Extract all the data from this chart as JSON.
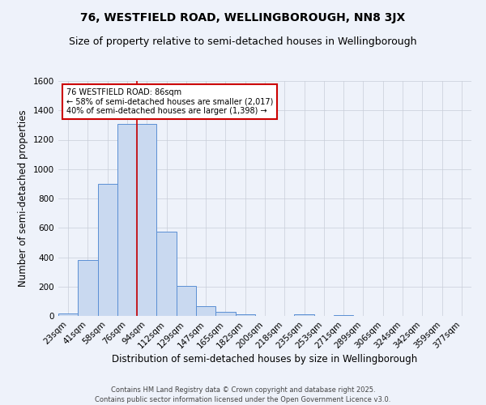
{
  "title": "76, WESTFIELD ROAD, WELLINGBOROUGH, NN8 3JX",
  "subtitle": "Size of property relative to semi-detached houses in Wellingborough",
  "xlabel": "Distribution of semi-detached houses by size in Wellingborough",
  "ylabel": "Number of semi-detached properties",
  "categories": [
    "23sqm",
    "41sqm",
    "58sqm",
    "76sqm",
    "94sqm",
    "112sqm",
    "129sqm",
    "147sqm",
    "165sqm",
    "182sqm",
    "200sqm",
    "218sqm",
    "235sqm",
    "253sqm",
    "271sqm",
    "289sqm",
    "306sqm",
    "324sqm",
    "342sqm",
    "359sqm",
    "377sqm"
  ],
  "values": [
    18,
    380,
    900,
    1310,
    1310,
    575,
    205,
    65,
    28,
    12,
    0,
    0,
    12,
    0,
    8,
    0,
    0,
    0,
    0,
    0,
    0
  ],
  "bar_color": "#c9d9f0",
  "bar_edge_color": "#5b8fd4",
  "highlight_bar_index": 3,
  "highlight_line_color": "#cc0000",
  "annotation_title": "76 WESTFIELD ROAD: 86sqm",
  "annotation_line1": "← 58% of semi-detached houses are smaller (2,017)",
  "annotation_line2": "40% of semi-detached houses are larger (1,398) →",
  "annotation_box_color": "#ffffff",
  "annotation_box_edge_color": "#cc0000",
  "footer_line1": "Contains HM Land Registry data © Crown copyright and database right 2025.",
  "footer_line2": "Contains public sector information licensed under the Open Government Licence v3.0.",
  "background_color": "#eef2fa",
  "ylim": [
    0,
    1600
  ],
  "yticks": [
    0,
    200,
    400,
    600,
    800,
    1000,
    1200,
    1400,
    1600
  ],
  "grid_color": "#c8cdd8",
  "title_fontsize": 10,
  "subtitle_fontsize": 9,
  "axis_label_fontsize": 8.5,
  "tick_fontsize": 7.5,
  "annotation_fontsize": 7,
  "footer_fontsize": 6
}
